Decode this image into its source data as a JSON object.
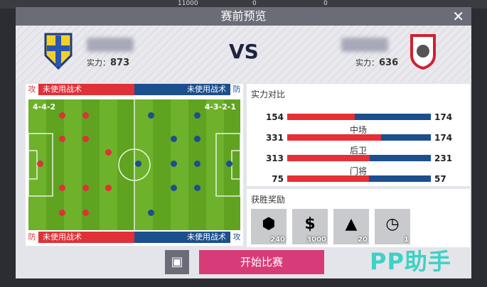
{
  "topbar": {
    "coins": "11000",
    "gems": "0",
    "other": "0"
  },
  "title": "赛前预览",
  "home": {
    "power_label": "实力：",
    "power": "873",
    "formation": "4-4-2",
    "tactic_attack": "未使用战术",
    "tactic_defense": "未使用战术",
    "attack_badge": "攻",
    "defense_badge": "防",
    "color": "#e03038"
  },
  "away": {
    "power_label": "实力：",
    "power": "636",
    "formation": "4-3-2-1",
    "tactic_attack": "未使用战术",
    "tactic_defense": "未使用战术",
    "attack_badge": "攻",
    "defense_badge": "防",
    "color": "#1c4f8e"
  },
  "vs": "VS",
  "comparison": {
    "title": "实力对比",
    "rows": [
      {
        "label": "",
        "home": 154,
        "away": 174
      },
      {
        "label": "中场",
        "home": 331,
        "away": 174
      },
      {
        "label": "后卫",
        "home": 313,
        "away": 231
      },
      {
        "label": "门将",
        "home": 75,
        "away": 57
      }
    ]
  },
  "rewards": {
    "title": "获胜奖励",
    "items": [
      {
        "icon": "exp-icon",
        "glyph": "⬢",
        "count": "240"
      },
      {
        "icon": "cash-icon",
        "glyph": "$",
        "count": "3000"
      },
      {
        "icon": "training-icon",
        "glyph": "▲",
        "count": "20"
      },
      {
        "icon": "time-icon",
        "glyph": "◷",
        "count": "1"
      }
    ]
  },
  "buttons": {
    "start": "开始比赛",
    "formation_icon": "▣",
    "close": "✕"
  },
  "watermark": "PP助手"
}
